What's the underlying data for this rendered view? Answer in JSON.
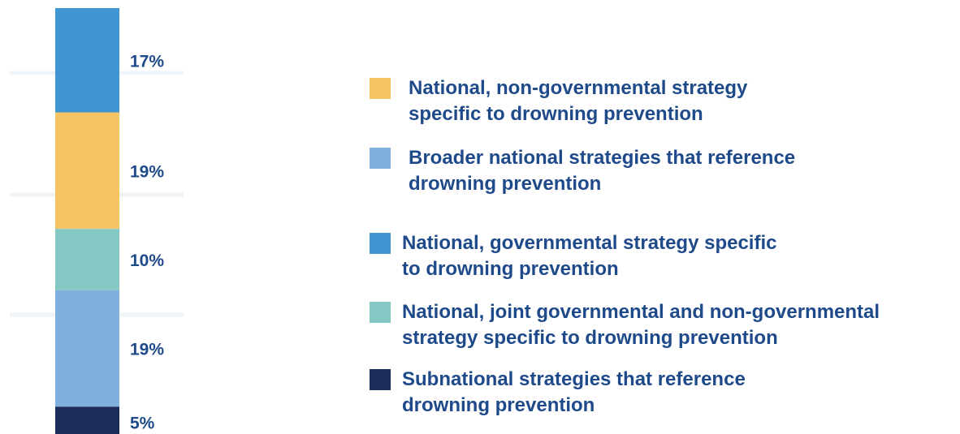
{
  "chart_data": {
    "type": "bar",
    "stacked": true,
    "orientation": "vertical",
    "categories": [
      ""
    ],
    "series": [
      {
        "name": "National, governmental strategy specific to drowning prevention",
        "value": 17,
        "label": "17%",
        "color": "#3f96d2"
      },
      {
        "name": "National, non-governmental strategy specific to drowning prevention",
        "value": 19,
        "label": "19%",
        "color": "#f5c565"
      },
      {
        "name": "National, joint governmental and non-governmental strategy specific to drowning prevention",
        "value": 10,
        "label": "10%",
        "color": "#84c8c4"
      },
      {
        "name": "Broader national strategies that reference drowning prevention",
        "value": 19,
        "label": "19%",
        "color": "#7fb0de"
      },
      {
        "name": "Subnational strategies that reference drowning prevention",
        "value": 5,
        "label": "5%",
        "color": "#1c2d5a"
      }
    ],
    "grid": true,
    "legend_position": "right",
    "legend": [
      {
        "label": "National, non-governmental strategy\nspecific to drowning prevention",
        "color": "#f5c565"
      },
      {
        "label": "Broader national strategies that reference\ndrowning prevention",
        "color": "#7fb0de"
      },
      {
        "label": "National, governmental strategy specific\nto drowning prevention",
        "color": "#3f96d2"
      },
      {
        "label": "National, joint governmental and non-governmental\nstrategy specific to drowning prevention",
        "color": "#84c8c4"
      },
      {
        "label": "Subnational strategies that reference\ndrowning prevention",
        "color": "#1c2d5a"
      }
    ]
  }
}
